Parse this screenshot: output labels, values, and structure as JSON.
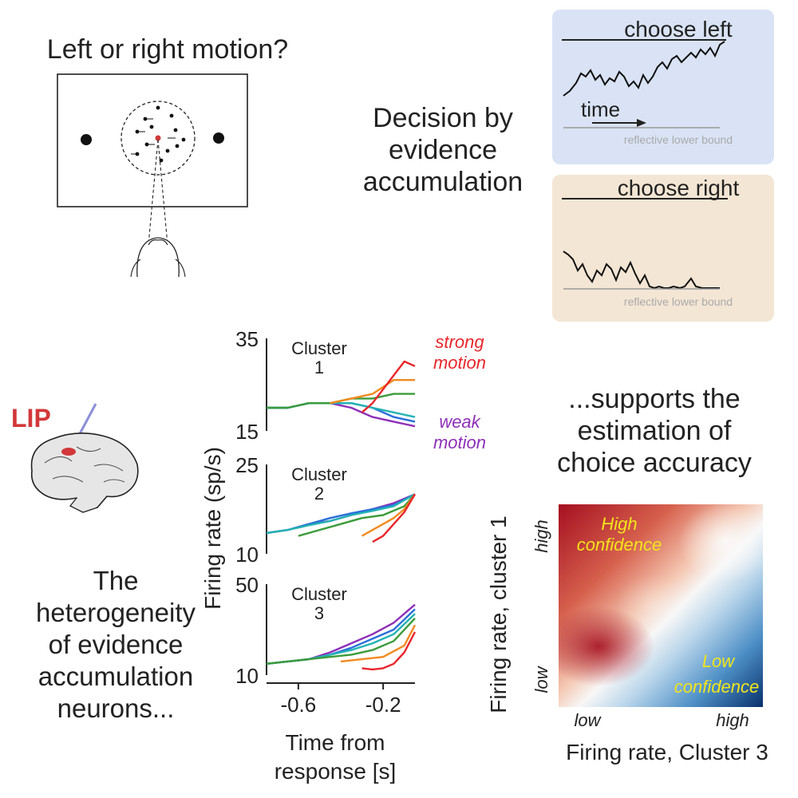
{
  "task": {
    "question": "Left or right motion?"
  },
  "decision": {
    "title_lines": [
      "Decision by",
      "evidence",
      "accumulation"
    ],
    "left_panel": {
      "label": "choose left",
      "time_label": "time",
      "bound_label": "reflective lower bound",
      "bg": "#d9e3f5"
    },
    "right_panel": {
      "label": "choose right",
      "bound_label": "reflective lower bound",
      "bg": "#f4e6d4"
    }
  },
  "brain": {
    "area_label": "LIP",
    "area_color": "#d2383a"
  },
  "heterogeneity": {
    "lines": [
      "The",
      "heterogeneity",
      "of evidence",
      "accumulation",
      "neurons..."
    ]
  },
  "supports": {
    "lines": [
      "...supports the",
      "estimation of",
      "choice accuracy"
    ]
  },
  "chart_data": [
    {
      "type": "line",
      "panel": "Cluster 1",
      "title_lines": [
        "Cluster",
        "1"
      ],
      "ylabel": "Firing rate (sp/s)",
      "ylim": [
        15,
        35
      ],
      "yticks": [
        "35",
        "15"
      ],
      "annotations": [
        {
          "lines": [
            "strong",
            "motion"
          ],
          "color": "#e8262b"
        },
        {
          "lines": [
            "weak",
            "motion"
          ],
          "color": "#8e2fb8"
        }
      ],
      "xlim": [
        -0.75,
        -0.05
      ],
      "series": [
        {
          "color": "#8e2fb8",
          "x": [
            -0.75,
            -0.65,
            -0.55,
            -0.45,
            -0.35,
            -0.25,
            -0.15,
            -0.05
          ],
          "y": [
            20,
            20,
            21,
            21,
            20,
            18,
            17,
            16
          ]
        },
        {
          "color": "#2a6fdb",
          "x": [
            -0.75,
            -0.65,
            -0.55,
            -0.45,
            -0.35,
            -0.25,
            -0.15,
            -0.05
          ],
          "y": [
            20,
            20,
            21,
            21,
            21,
            20,
            18,
            17
          ]
        },
        {
          "color": "#22b3b3",
          "x": [
            -0.75,
            -0.65,
            -0.55,
            -0.45,
            -0.35,
            -0.25,
            -0.15,
            -0.05
          ],
          "y": [
            20,
            20,
            21,
            21,
            21,
            20,
            19,
            18
          ]
        },
        {
          "color": "#3a9b3a",
          "x": [
            -0.75,
            -0.65,
            -0.55,
            -0.45,
            -0.35,
            -0.25,
            -0.15,
            -0.05
          ],
          "y": [
            20,
            20,
            21,
            21,
            22,
            22,
            23,
            23
          ]
        },
        {
          "color": "#f28a1e",
          "x": [
            -0.45,
            -0.35,
            -0.25,
            -0.15,
            -0.05
          ],
          "y": [
            21,
            22,
            23,
            26,
            26
          ]
        },
        {
          "color": "#e8262b",
          "x": [
            -0.3,
            -0.25,
            -0.2,
            -0.15,
            -0.1,
            -0.05
          ],
          "y": [
            19,
            21,
            24,
            27,
            30,
            29
          ]
        }
      ]
    },
    {
      "type": "line",
      "panel": "Cluster 2",
      "title_lines": [
        "Cluster",
        "2"
      ],
      "ylim": [
        10,
        25
      ],
      "yticks": [
        "25",
        "10"
      ],
      "xlim": [
        -0.75,
        -0.05
      ],
      "series": [
        {
          "color": "#8e2fb8",
          "x": [
            -0.75,
            -0.65,
            -0.55,
            -0.45,
            -0.35,
            -0.25,
            -0.15,
            -0.05
          ],
          "y": [
            13.5,
            14,
            15,
            15.5,
            16.5,
            17.5,
            18.5,
            20
          ]
        },
        {
          "color": "#2a6fdb",
          "x": [
            -0.75,
            -0.65,
            -0.55,
            -0.45,
            -0.35,
            -0.25,
            -0.15,
            -0.05
          ],
          "y": [
            13.5,
            14,
            15,
            16,
            16.8,
            17.5,
            18.2,
            20
          ]
        },
        {
          "color": "#22b3b3",
          "x": [
            -0.75,
            -0.65,
            -0.55,
            -0.45,
            -0.35,
            -0.25,
            -0.15,
            -0.05
          ],
          "y": [
            13.5,
            14,
            14.8,
            15.5,
            16.5,
            17.2,
            18,
            20
          ]
        },
        {
          "color": "#3a9b3a",
          "x": [
            -0.6,
            -0.5,
            -0.4,
            -0.3,
            -0.2,
            -0.1,
            -0.05
          ],
          "y": [
            13,
            14,
            15,
            16,
            16.5,
            18,
            20
          ]
        },
        {
          "color": "#f28a1e",
          "x": [
            -0.3,
            -0.25,
            -0.2,
            -0.15,
            -0.1,
            -0.05
          ],
          "y": [
            13,
            14,
            15,
            16,
            17.5,
            20
          ]
        },
        {
          "color": "#e8262b",
          "x": [
            -0.25,
            -0.2,
            -0.15,
            -0.1,
            -0.05
          ],
          "y": [
            12,
            13,
            15,
            17,
            20
          ]
        }
      ]
    },
    {
      "type": "line",
      "panel": "Cluster 3",
      "title_lines": [
        "Cluster",
        "3"
      ],
      "ylim": [
        10,
        50
      ],
      "yticks": [
        "50",
        "10"
      ],
      "xlim": [
        -0.75,
        -0.05
      ],
      "xticks": [
        -0.6,
        -0.2
      ],
      "xtick_labels": [
        "-0.6",
        "-0.2"
      ],
      "xlabel_lines": [
        "Time from",
        "response [s]"
      ],
      "series": [
        {
          "color": "#8e2fb8",
          "x": [
            -0.75,
            -0.65,
            -0.55,
            -0.45,
            -0.35,
            -0.25,
            -0.15,
            -0.05
          ],
          "y": [
            15,
            16,
            17,
            20,
            24,
            28,
            33,
            41
          ]
        },
        {
          "color": "#2a6fdb",
          "x": [
            -0.75,
            -0.65,
            -0.55,
            -0.45,
            -0.35,
            -0.25,
            -0.15,
            -0.05
          ],
          "y": [
            15,
            16,
            17,
            19,
            22,
            26,
            30,
            39
          ]
        },
        {
          "color": "#22b3b3",
          "x": [
            -0.75,
            -0.65,
            -0.55,
            -0.45,
            -0.35,
            -0.25,
            -0.15,
            -0.05
          ],
          "y": [
            15,
            16,
            17,
            19,
            21,
            24,
            28,
            37
          ]
        },
        {
          "color": "#3a9b3a",
          "x": [
            -0.75,
            -0.65,
            -0.55,
            -0.45,
            -0.35,
            -0.25,
            -0.15,
            -0.05
          ],
          "y": [
            15,
            16,
            17,
            18,
            19,
            21,
            25,
            35
          ]
        },
        {
          "color": "#f28a1e",
          "x": [
            -0.4,
            -0.3,
            -0.2,
            -0.1,
            -0.05
          ],
          "y": [
            16,
            17,
            18,
            23,
            32
          ]
        },
        {
          "color": "#e8262b",
          "x": [
            -0.3,
            -0.25,
            -0.2,
            -0.15,
            -0.1,
            -0.05
          ],
          "y": [
            13,
            12.5,
            13,
            15,
            20,
            29
          ]
        }
      ]
    },
    {
      "type": "heatmap",
      "ylabel": "Firing rate, cluster 1",
      "xlabel": "Firing rate, Cluster 3",
      "xtick_labels": [
        "low",
        "high"
      ],
      "ytick_labels": [
        "low",
        "high"
      ],
      "annotations": [
        {
          "lines": [
            "High",
            "confidence"
          ],
          "color": "#f2e51c"
        },
        {
          "lines": [
            "Low",
            "confidence"
          ],
          "color": "#f2e51c"
        }
      ],
      "colors": {
        "high": "#b2182b",
        "mid": "#f7f7f7",
        "low": "#2166ac"
      }
    }
  ]
}
